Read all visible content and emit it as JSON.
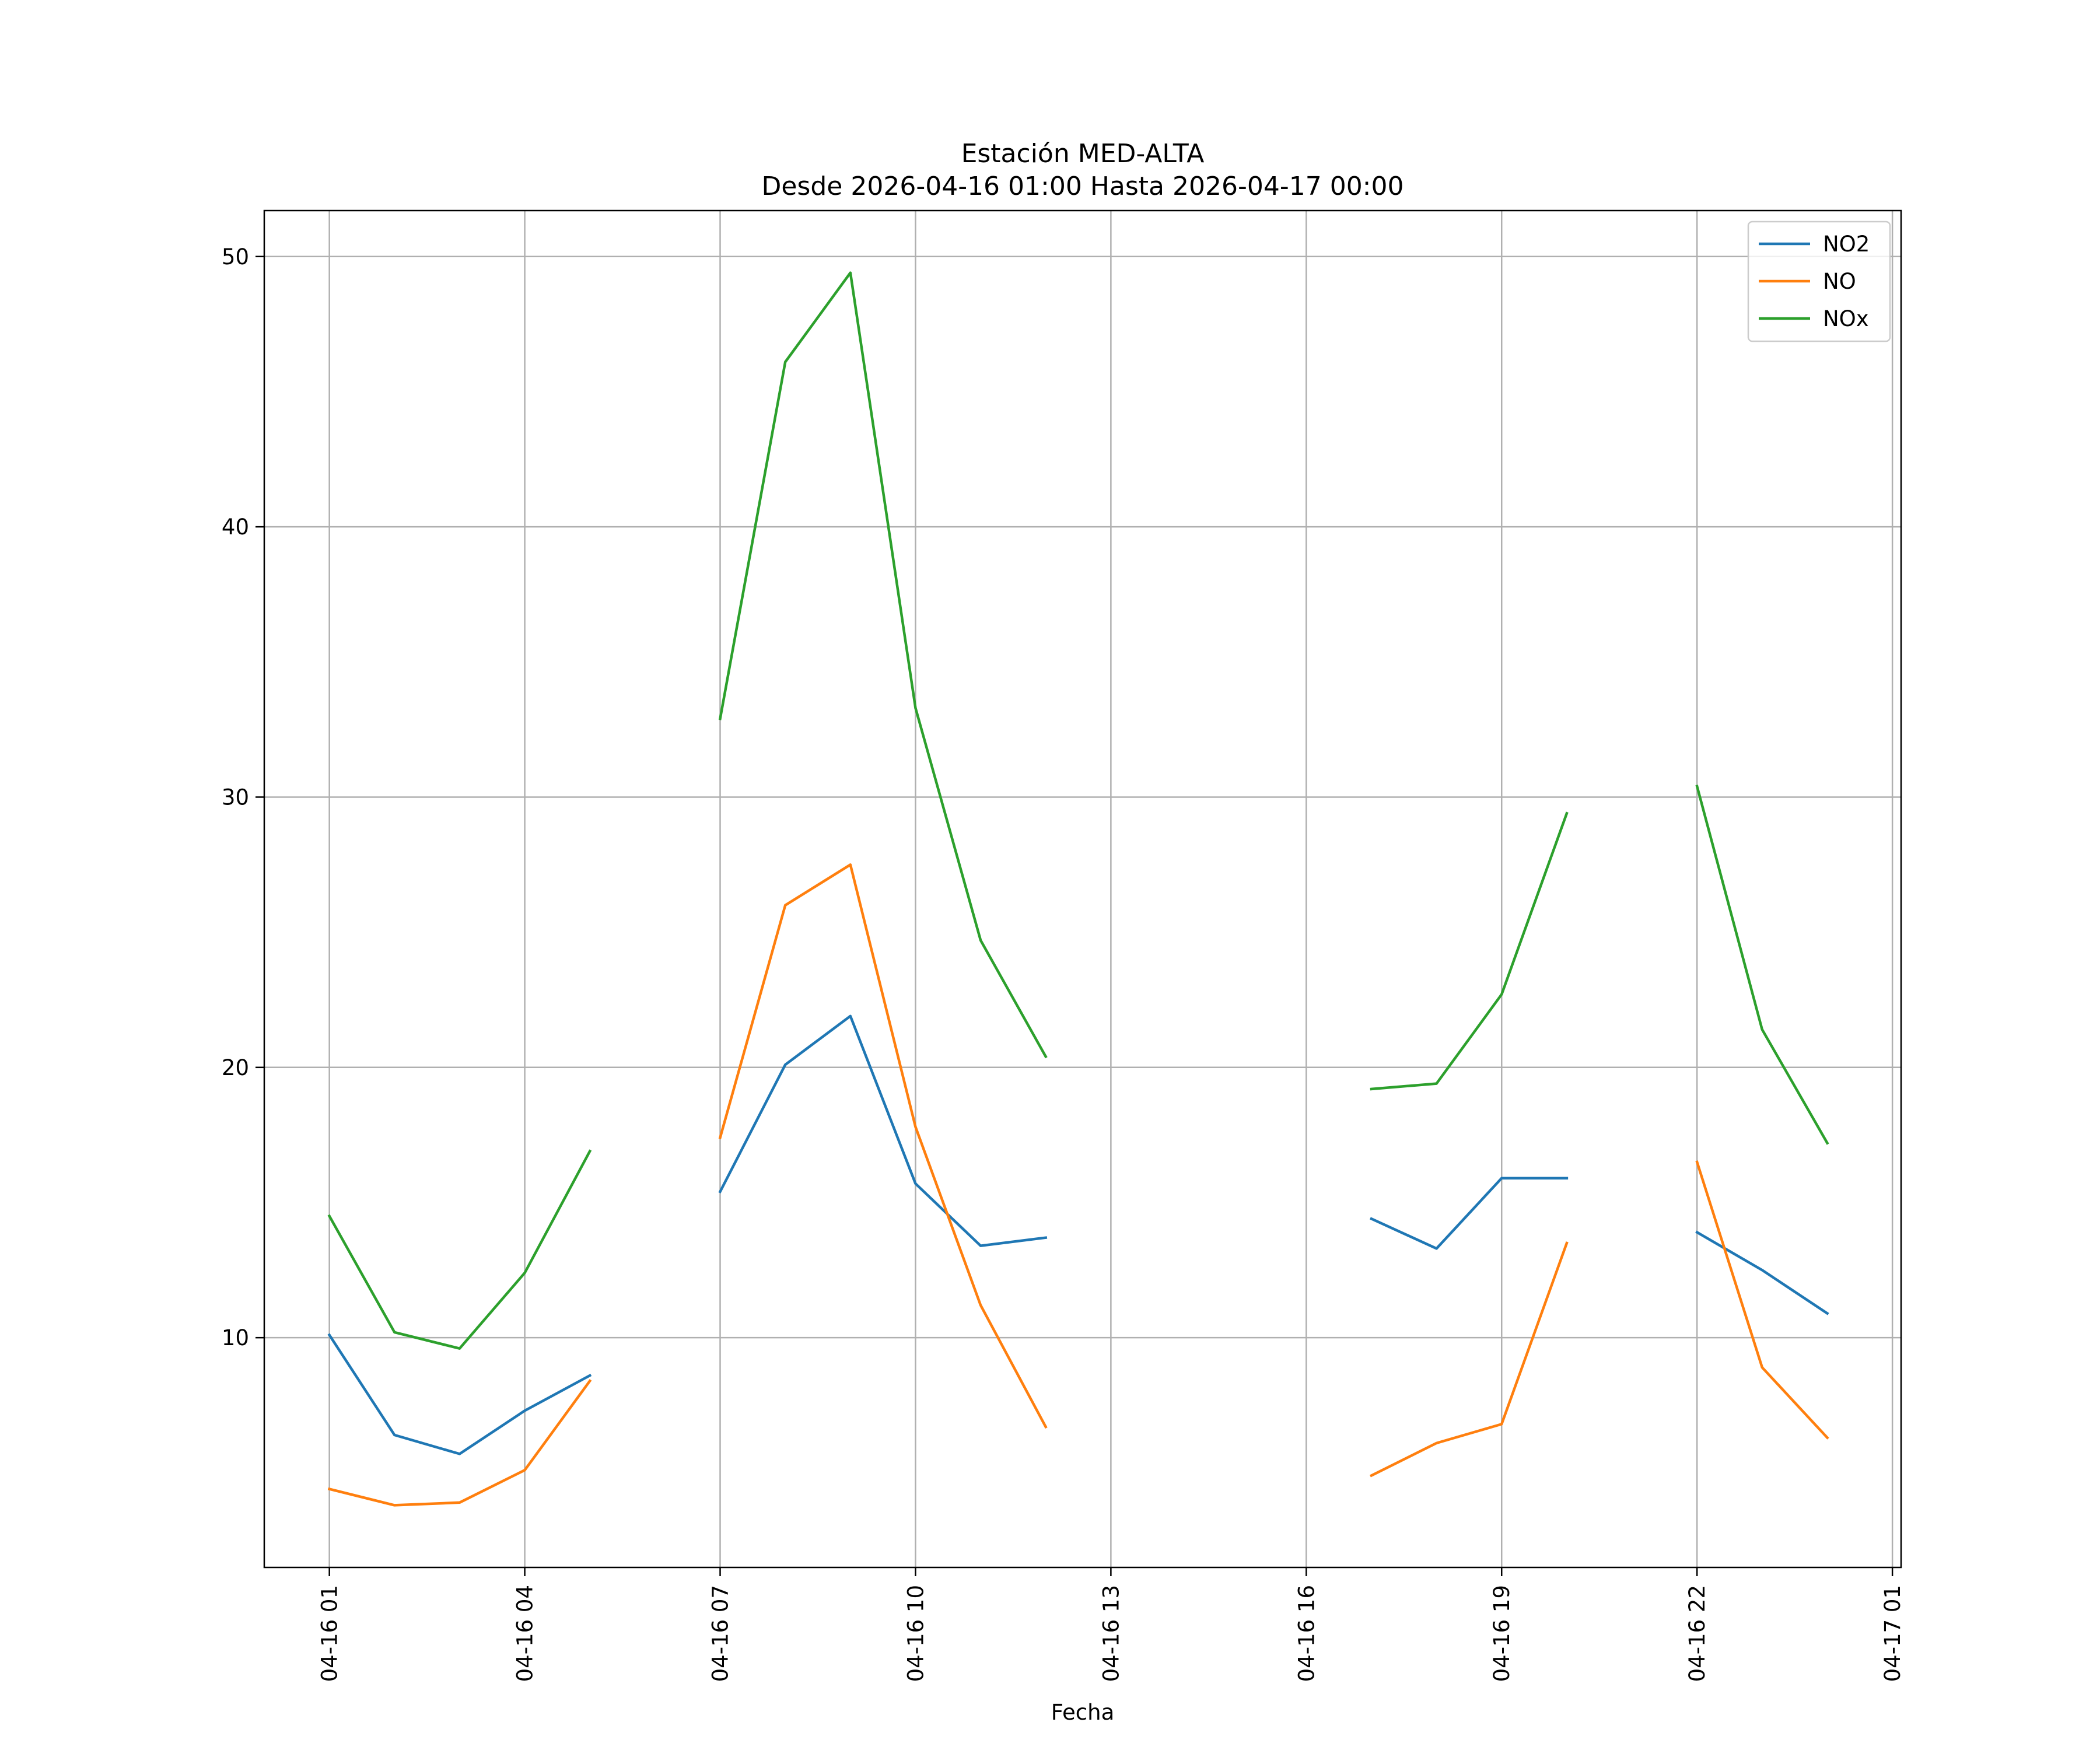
{
  "chart_data": {
    "type": "line",
    "title": "Estación MED-ALTA",
    "subtitle": "Desde 2026-04-16 01:00 Hasta 2026-04-17 00:00",
    "xlabel": "Fecha",
    "ylabel": "",
    "x_ticks": [
      "04-16 01",
      "04-16 04",
      "04-16 07",
      "04-16 10",
      "04-16 13",
      "04-16 16",
      "04-16 19",
      "04-16 22",
      "04-17 01"
    ],
    "y_ticks": [
      10,
      20,
      30,
      40,
      50
    ],
    "xlim": [
      "2026-04-16 00:00",
      "2026-04-17 01:08"
    ],
    "ylim": [
      1.5,
      51.7
    ],
    "grid": true,
    "legend_position": "top-right",
    "x": [
      "2026-04-16 01:00",
      "2026-04-16 02:00",
      "2026-04-16 03:00",
      "2026-04-16 04:00",
      "2026-04-16 05:00",
      "2026-04-16 06:00",
      "2026-04-16 07:00",
      "2026-04-16 08:00",
      "2026-04-16 09:00",
      "2026-04-16 10:00",
      "2026-04-16 11:00",
      "2026-04-16 12:00",
      "2026-04-16 13:00",
      "2026-04-16 14:00",
      "2026-04-16 15:00",
      "2026-04-16 16:00",
      "2026-04-16 17:00",
      "2026-04-16 18:00",
      "2026-04-16 19:00",
      "2026-04-16 20:00",
      "2026-04-16 21:00",
      "2026-04-16 22:00",
      "2026-04-16 23:00",
      "2026-04-17 00:00"
    ],
    "series": [
      {
        "name": "NO2",
        "color": "#1f77b4",
        "values": [
          10.1,
          6.4,
          5.7,
          7.3,
          8.6,
          null,
          15.4,
          20.1,
          21.9,
          15.7,
          13.4,
          13.7,
          null,
          null,
          null,
          null,
          14.4,
          13.3,
          15.9,
          15.9,
          null,
          13.9,
          12.5,
          10.9
        ]
      },
      {
        "name": "NO",
        "color": "#ff7f0e",
        "values": [
          4.4,
          3.8,
          3.9,
          5.1,
          8.4,
          null,
          17.4,
          26.0,
          27.5,
          17.8,
          11.2,
          6.7,
          null,
          null,
          null,
          null,
          4.9,
          6.1,
          6.8,
          13.5,
          null,
          16.5,
          8.9,
          6.3
        ]
      },
      {
        "name": "NOx",
        "color": "#2ca02c",
        "values": [
          14.5,
          10.2,
          9.6,
          12.4,
          16.9,
          null,
          32.9,
          46.1,
          49.4,
          33.3,
          24.7,
          20.4,
          null,
          null,
          null,
          null,
          19.2,
          19.4,
          22.7,
          29.4,
          null,
          30.4,
          21.4,
          17.2
        ]
      }
    ]
  }
}
